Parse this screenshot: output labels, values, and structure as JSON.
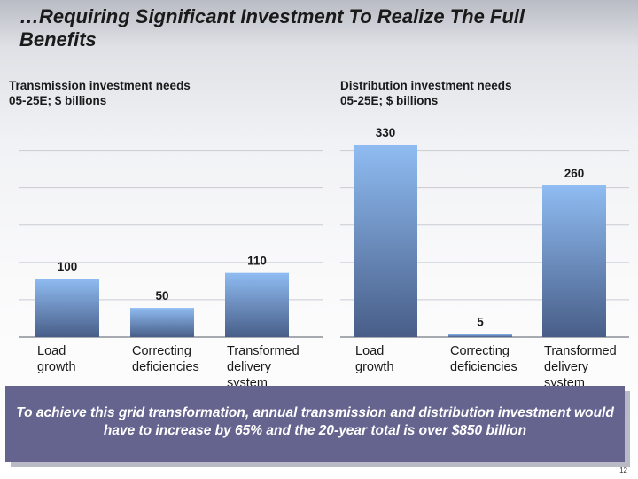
{
  "slide": {
    "title": "…Requiring Significant Investment To Realize The Full Benefits",
    "banner": "To achieve this grid transformation, annual transmission and distribution investment would have to increase by 65% and the 20-year total is over $850 billion",
    "page_number": "12"
  },
  "chart_data": [
    {
      "type": "bar",
      "title": "Transmission investment needs\n05-25E; $ billions",
      "categories": [
        "Load\ngrowth",
        "Correcting\ndeficiencies",
        "Transformed\ndelivery\nsystem"
      ],
      "values": [
        100,
        50,
        110
      ],
      "ylim": [
        0,
        330
      ],
      "grid": true
    },
    {
      "type": "bar",
      "title": "Distribution investment needs\n05-25E; $ billions",
      "categories": [
        "Load\ngrowth",
        "Correcting\ndeficiencies",
        "Transformed\ndelivery\nsystem"
      ],
      "values": [
        330,
        5,
        260
      ],
      "ylim": [
        0,
        330
      ],
      "grid": true
    }
  ],
  "colors": {
    "bar_top": "#8fbcf2",
    "bar_bottom": "#485e88",
    "banner_bg": "#64648f"
  }
}
